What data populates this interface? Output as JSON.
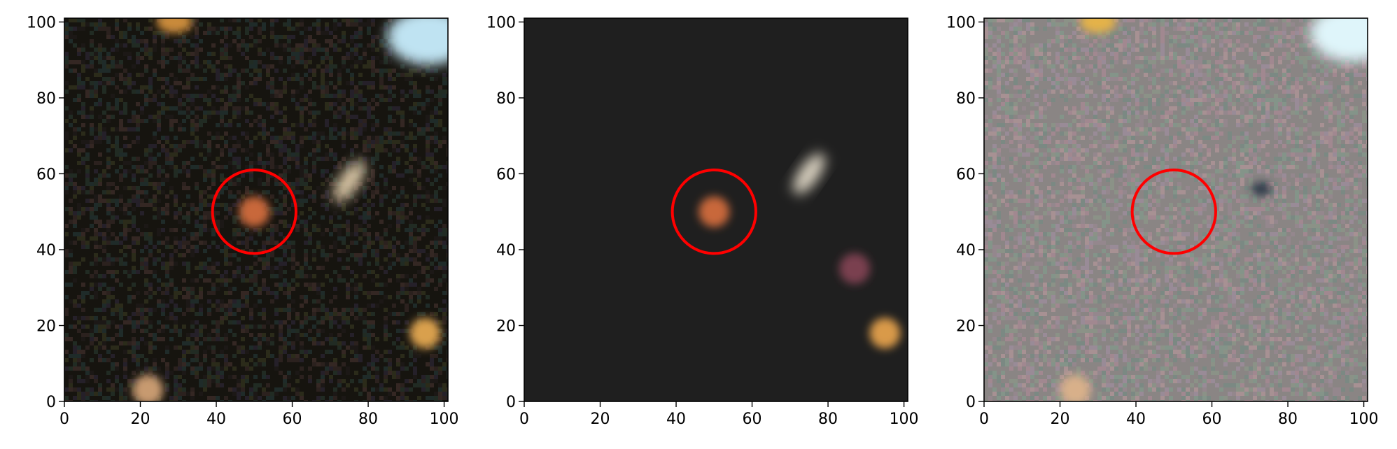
{
  "panels": [
    {
      "id": "observed",
      "background": "#16140f",
      "noise_color": "#3b2f2a",
      "marker": {
        "x": 50,
        "y": 50,
        "radius": 11,
        "color": "#ff0000"
      },
      "sources": [
        {
          "x": 50,
          "y": 50,
          "color": "#c8673a",
          "label": "target"
        },
        {
          "x": 75,
          "y": 58,
          "color": "#d9c6a4",
          "label": "galaxy"
        },
        {
          "x": 29,
          "y": 100,
          "color": "#c98a3a",
          "label": "edge-source"
        },
        {
          "x": 96,
          "y": 96,
          "color": "#bfe3f2",
          "label": "corner-glow"
        },
        {
          "x": 95,
          "y": 18,
          "color": "#d9a04e",
          "label": "star"
        },
        {
          "x": 22,
          "y": 3,
          "color": "#c79a70",
          "label": "faint-source"
        }
      ]
    },
    {
      "id": "model",
      "background": "#1f1f1f",
      "noise_color": "#1f1f1f",
      "marker": {
        "x": 50,
        "y": 50,
        "radius": 11,
        "color": "#ff0000"
      },
      "sources": [
        {
          "x": 50,
          "y": 50,
          "color": "#c8673a",
          "label": "target"
        },
        {
          "x": 75,
          "y": 60,
          "color": "#d8d0bf",
          "label": "galaxy"
        },
        {
          "x": 87,
          "y": 35,
          "color": "#7a4050",
          "label": "faint-source"
        },
        {
          "x": 95,
          "y": 18,
          "color": "#d99a4a",
          "label": "star"
        }
      ]
    },
    {
      "id": "residual",
      "background": "#8a8584",
      "noise_color": "#9a7f8a",
      "marker": {
        "x": 50,
        "y": 50,
        "radius": 11,
        "color": "#ff0000"
      },
      "sources": [
        {
          "x": 30,
          "y": 100,
          "color": "#e4b24a",
          "label": "edge-source"
        },
        {
          "x": 97,
          "y": 97,
          "color": "#dff5fa",
          "label": "corner-glow"
        },
        {
          "x": 73,
          "y": 56,
          "color": "#2f3b4a",
          "label": "dark-residual"
        },
        {
          "x": 24,
          "y": 3,
          "color": "#d8b08a",
          "label": "faint-source"
        }
      ]
    }
  ],
  "axes": {
    "xlim": [
      0,
      101
    ],
    "ylim": [
      0,
      101
    ],
    "xticks": [
      0,
      20,
      40,
      60,
      80,
      100
    ],
    "yticks": [
      0,
      20,
      40,
      60,
      80,
      100
    ],
    "xtick_labels": [
      "0",
      "20",
      "40",
      "60",
      "80",
      "100"
    ],
    "ytick_labels": [
      "0",
      "20",
      "40",
      "60",
      "80",
      "100"
    ]
  }
}
